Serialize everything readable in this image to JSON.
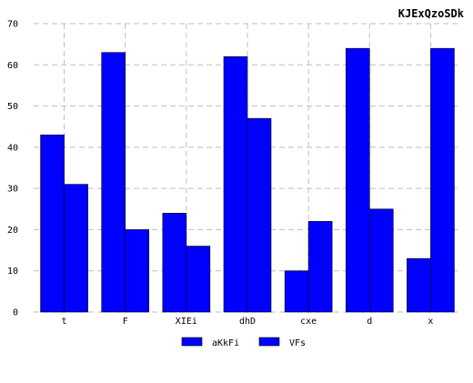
{
  "chart_data": {
    "type": "bar",
    "title": "KJExQzoSDk",
    "xlabel": "",
    "ylabel": "",
    "categories": [
      "t",
      "F",
      "XIEi",
      "dhD",
      "cxe",
      "d",
      "x"
    ],
    "series": [
      {
        "name": "aKkFi",
        "values": [
          43,
          63,
          24,
          62,
          10,
          64,
          13
        ],
        "color": "#0000ff"
      },
      {
        "name": "VFs",
        "values": [
          31,
          20,
          16,
          47,
          22,
          25,
          64
        ],
        "color": "#0000ff"
      }
    ],
    "ylim": [
      0,
      70
    ],
    "yticks": [
      0,
      10,
      20,
      30,
      40,
      50,
      60,
      70
    ],
    "grid": true,
    "legend_position": "bottom-center"
  }
}
